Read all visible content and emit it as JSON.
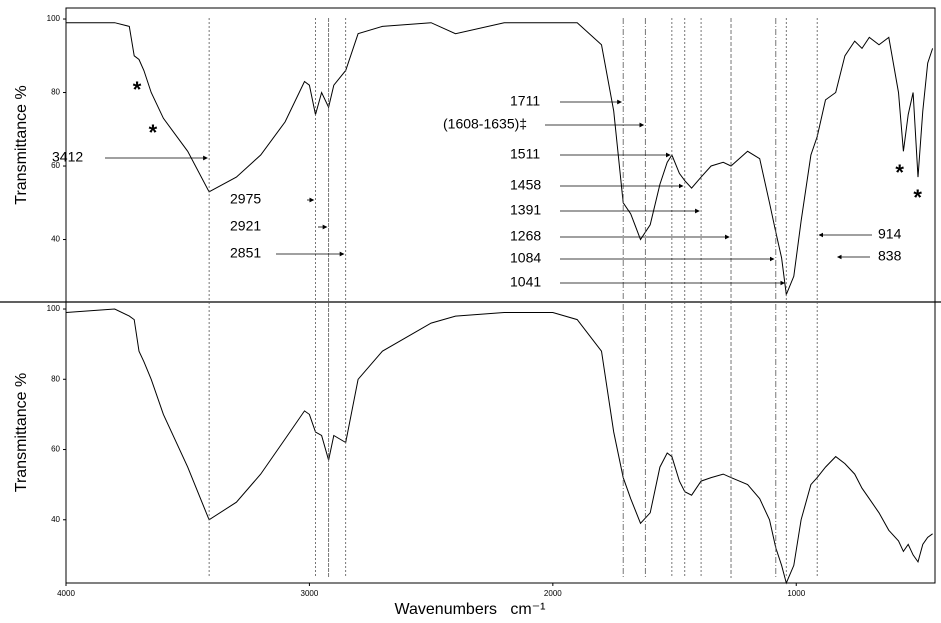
{
  "chart_data": [
    {
      "type": "line",
      "ylabel": "Transmittance  %",
      "xlim": [
        4000,
        430
      ],
      "ylim": [
        23,
        103
      ],
      "yticks": [
        40,
        60,
        80,
        100
      ],
      "x": [
        4000,
        3800,
        3740,
        3720,
        3700,
        3680,
        3650,
        3600,
        3500,
        3412,
        3300,
        3200,
        3100,
        3020,
        3000,
        2975,
        2950,
        2921,
        2900,
        2851,
        2800,
        2700,
        2500,
        2400,
        2200,
        2000,
        1900,
        1800,
        1750,
        1711,
        1680,
        1640,
        1600,
        1560,
        1530,
        1511,
        1480,
        1458,
        1430,
        1391,
        1350,
        1300,
        1268,
        1200,
        1150,
        1110,
        1084,
        1060,
        1041,
        1010,
        980,
        940,
        914,
        880,
        838,
        800,
        760,
        730,
        700,
        660,
        620,
        580,
        560,
        540,
        520,
        500,
        480,
        460,
        440
      ],
      "series": [
        {
          "color": "#000000",
          "values": [
            99,
            99,
            98,
            90,
            89,
            86,
            80,
            73,
            64,
            53,
            57,
            63,
            72,
            83,
            82,
            74,
            80,
            76,
            82,
            86,
            96,
            98,
            99,
            96,
            99,
            99,
            99,
            93,
            75,
            50,
            47,
            40,
            44,
            55,
            61,
            63,
            58,
            56,
            54,
            57,
            60,
            61,
            60,
            64,
            62,
            50,
            42,
            35,
            25,
            30,
            45,
            63,
            68,
            78,
            80,
            90,
            94,
            92,
            95,
            93,
            95,
            80,
            64,
            74,
            80,
            57,
            75,
            88,
            92
          ]
        }
      ],
      "annotations": [
        {
          "label": "3412",
          "x": 3412
        },
        {
          "label": "2975",
          "x": 2975
        },
        {
          "label": "2921",
          "x": 2921
        },
        {
          "label": "2851",
          "x": 2851
        },
        {
          "label": "1711",
          "x": 1711
        },
        {
          "label": "(1608-1635)‡",
          "x": 1620
        },
        {
          "label": "1511",
          "x": 1511
        },
        {
          "label": "1458",
          "x": 1458
        },
        {
          "label": "1391",
          "x": 1391
        },
        {
          "label": "1268",
          "x": 1268
        },
        {
          "label": "1084",
          "x": 1084
        },
        {
          "label": "1041",
          "x": 1041
        },
        {
          "label": "914",
          "x": 914
        },
        {
          "label": "838",
          "x": 838
        }
      ],
      "asterisks": [
        {
          "label": "*",
          "x": 3708
        },
        {
          "label": "*",
          "x": 3643
        },
        {
          "label": "*",
          "x": 575
        },
        {
          "label": "*",
          "x": 501
        }
      ]
    },
    {
      "type": "line",
      "ylabel": "Transmittance  %",
      "xlabel": "Wavenumbers   cm⁻¹",
      "xlim": [
        4000,
        430
      ],
      "ylim": [
        22,
        102
      ],
      "yticks": [
        40,
        60,
        80,
        100
      ],
      "xticks": [
        4000,
        3000,
        2000,
        1000
      ],
      "x": [
        4000,
        3800,
        3740,
        3720,
        3700,
        3680,
        3650,
        3600,
        3500,
        3412,
        3300,
        3200,
        3100,
        3020,
        3000,
        2975,
        2950,
        2921,
        2900,
        2851,
        2800,
        2700,
        2500,
        2400,
        2200,
        2000,
        1900,
        1800,
        1750,
        1711,
        1680,
        1640,
        1600,
        1560,
        1530,
        1511,
        1480,
        1458,
        1430,
        1391,
        1350,
        1300,
        1268,
        1200,
        1150,
        1110,
        1084,
        1060,
        1041,
        1010,
        980,
        940,
        914,
        880,
        838,
        800,
        760,
        730,
        700,
        660,
        620,
        580,
        560,
        540,
        520,
        500,
        480,
        460,
        440
      ],
      "series": [
        {
          "color": "#000000",
          "values": [
            99,
            100,
            98,
            97,
            88,
            85,
            80,
            70,
            55,
            40,
            45,
            53,
            63,
            71,
            70,
            65,
            64,
            57,
            64,
            62,
            80,
            88,
            96,
            98,
            99,
            99,
            97,
            88,
            65,
            52,
            46,
            39,
            42,
            55,
            59,
            58,
            51,
            48,
            47,
            51,
            52,
            53,
            52,
            50,
            46,
            40,
            32,
            27,
            22,
            27,
            40,
            50,
            52,
            55,
            58,
            56,
            53,
            49,
            46,
            42,
            37,
            34,
            31,
            33,
            30,
            28,
            33,
            35,
            36
          ]
        }
      ]
    }
  ]
}
